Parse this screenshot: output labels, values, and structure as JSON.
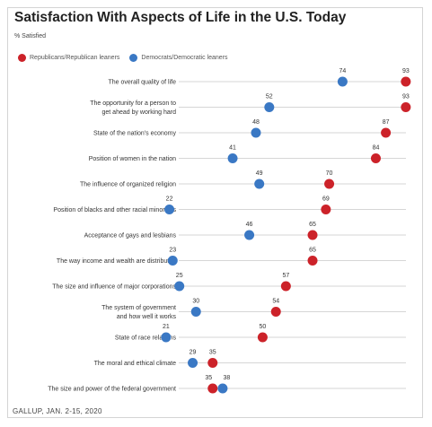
{
  "title": "Satisfaction With Aspects of Life in the U.S. Today",
  "subtitle": "% Satisfied",
  "source": "GALLUP, JAN. 2-15, 2020",
  "colors": {
    "republican": "#cc2229",
    "democrat": "#3a78c4",
    "rule": "#c8c8c8"
  },
  "legend": [
    {
      "label": "Republicans/Republican leaners",
      "color": "#cc2229"
    },
    {
      "label": "Democrats/Democratic leaners",
      "color": "#3a78c4"
    }
  ],
  "chart_data": {
    "type": "scatter",
    "title": "Satisfaction With Aspects of Life in the U.S. Today",
    "subtitle": "% Satisfied",
    "xlim": [
      0,
      100
    ],
    "grid": false,
    "legend_position": "top-left",
    "categories": [
      [
        "The overall quality of life"
      ],
      [
        "The opportunity for a person to",
        "get ahead by working hard"
      ],
      [
        "State of the nation's economy"
      ],
      [
        "Position of women in the nation"
      ],
      [
        "The influence of organized religion"
      ],
      [
        "Position of blacks and other racial minorities"
      ],
      [
        "Acceptance of gays and lesbians"
      ],
      [
        "The way income and wealth are distributed"
      ],
      [
        "The size and influence of major corporations"
      ],
      [
        "The system of government",
        "and how well it works"
      ],
      [
        "State of race relations"
      ],
      [
        "The moral and ethical climate"
      ],
      [
        "The size and power of the federal government"
      ]
    ],
    "series": [
      {
        "name": "Republicans/Republican leaners",
        "color": "#cc2229",
        "values": [
          93,
          93,
          87,
          84,
          70,
          69,
          65,
          65,
          57,
          54,
          50,
          35,
          35
        ]
      },
      {
        "name": "Democrats/Democratic leaners",
        "color": "#3a78c4",
        "values": [
          74,
          52,
          48,
          41,
          49,
          22,
          46,
          23,
          25,
          30,
          21,
          29,
          38
        ]
      }
    ]
  }
}
